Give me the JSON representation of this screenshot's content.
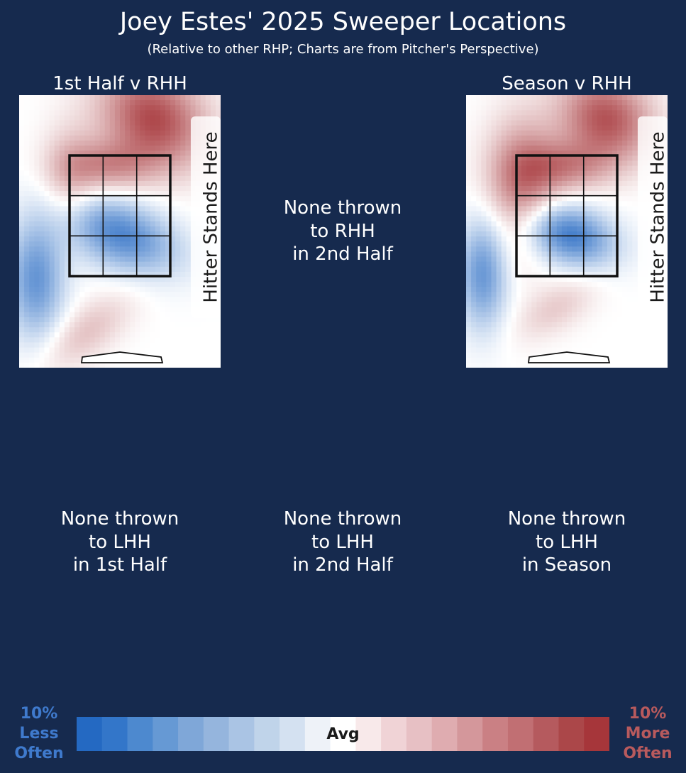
{
  "header": {
    "title": "Joey Estes' 2025 Sweeper Locations",
    "subtitle": "(Relative to other RHP; Charts are from Pitcher's Perspective)"
  },
  "panels": [
    {
      "id": "first-half-rhh",
      "title": "1st Half v RHH",
      "hitter_label": "Hitter Stands Here"
    },
    {
      "id": "season-rhh",
      "title": "Season v RHH",
      "hitter_label": "Hitter Stands Here"
    }
  ],
  "empty_panels": [
    {
      "id": "second-half-rhh",
      "lines": [
        "None thrown",
        "to RHH",
        "in 2nd Half"
      ]
    },
    {
      "id": "first-half-lhh",
      "lines": [
        "None thrown",
        "to LHH",
        "in 1st Half"
      ]
    },
    {
      "id": "second-half-lhh",
      "lines": [
        "None thrown",
        "to LHH",
        "in 2nd Half"
      ]
    },
    {
      "id": "season-lhh",
      "lines": [
        "None thrown",
        "to LHH",
        "in Season"
      ]
    }
  ],
  "colorbar": {
    "left_lines": [
      "10%",
      "Less",
      "Often"
    ],
    "right_lines": [
      "10%",
      "More",
      "Often"
    ],
    "center_label": "Avg",
    "colors": [
      "#2469c2",
      "#3376c9",
      "#4d89cf",
      "#6699d4",
      "#7fa7d8",
      "#95b5dd",
      "#aac4e4",
      "#c0d4ea",
      "#d4e1f1",
      "#eef2f8",
      "#ffffff",
      "#f8e9ea",
      "#f0d3d6",
      "#e7c0c4",
      "#dfacb0",
      "#d4979b",
      "#ca8084",
      "#c16f73",
      "#b55a5e",
      "#ab4749",
      "#a6363a"
    ],
    "less_color": "#3f7acd",
    "more_color": "#b85a5d"
  },
  "chart_data": [
    {
      "type": "heatmap",
      "title": "1st Half v RHH",
      "metric": "location frequency relative to other RHP",
      "scale": [
        -10,
        10
      ],
      "x": [
        -1.8,
        -1.6,
        -1.4,
        -1.2,
        -1.0,
        -0.8,
        -0.6,
        -0.4,
        -0.2,
        0.0,
        0.2,
        0.4,
        0.6,
        0.8,
        1.0,
        1.2,
        1.4,
        1.6,
        1.8
      ],
      "y": [
        4.6,
        4.4,
        4.2,
        4.0,
        3.8,
        3.6,
        3.4,
        3.2,
        3.0,
        2.8,
        2.6,
        2.4,
        2.2,
        2.0,
        1.8,
        1.6,
        1.4,
        1.2,
        1.0,
        0.8,
        0.6,
        0.4,
        0.2,
        0.0
      ],
      "blobs": [
        {
          "x": 0.6,
          "y": 4.2,
          "sx": 0.7,
          "sy": 0.55,
          "value": 9,
          "angle": -30
        },
        {
          "x": -0.9,
          "y": 3.2,
          "sx": 0.35,
          "sy": 0.6,
          "value": 3.5,
          "angle": 0
        },
        {
          "x": -0.2,
          "y": 3.4,
          "sx": 0.55,
          "sy": 0.3,
          "value": 5,
          "angle": 0
        },
        {
          "x": 0.0,
          "y": 2.25,
          "sx": 0.75,
          "sy": 0.4,
          "value": -8,
          "angle": -20
        },
        {
          "x": -1.5,
          "y": 1.5,
          "sx": 0.35,
          "sy": 0.7,
          "value": -7,
          "angle": 0
        },
        {
          "x": -0.6,
          "y": 0.6,
          "sx": 0.65,
          "sy": 0.3,
          "value": 3,
          "angle": 35
        }
      ]
    },
    {
      "type": "heatmap",
      "title": "Season v RHH",
      "metric": "location frequency relative to other RHP",
      "scale": [
        -10,
        10
      ],
      "x": [
        -1.8,
        -1.6,
        -1.4,
        -1.2,
        -1.0,
        -0.8,
        -0.6,
        -0.4,
        -0.2,
        0.0,
        0.2,
        0.4,
        0.6,
        0.8,
        1.0,
        1.2,
        1.4,
        1.6,
        1.8
      ],
      "y": [
        4.6,
        4.4,
        4.2,
        4.0,
        3.8,
        3.6,
        3.4,
        3.2,
        3.0,
        2.8,
        2.6,
        2.4,
        2.2,
        2.0,
        1.8,
        1.6,
        1.4,
        1.2,
        1.0,
        0.8,
        0.6,
        0.4,
        0.2,
        0.0
      ],
      "blobs": [
        {
          "x": 0.7,
          "y": 4.2,
          "sx": 0.6,
          "sy": 0.5,
          "value": 8.5,
          "angle": -25
        },
        {
          "x": -0.8,
          "y": 3.1,
          "sx": 0.45,
          "sy": 0.75,
          "value": 7,
          "angle": 0
        },
        {
          "x": 0.0,
          "y": 3.4,
          "sx": 0.55,
          "sy": 0.3,
          "value": 5,
          "angle": 0
        },
        {
          "x": 0.0,
          "y": 2.25,
          "sx": 0.6,
          "sy": 0.35,
          "value": -9,
          "angle": -15
        },
        {
          "x": -1.5,
          "y": 1.6,
          "sx": 0.3,
          "sy": 0.65,
          "value": -7,
          "angle": 0
        },
        {
          "x": -0.2,
          "y": 1.0,
          "sx": 0.55,
          "sy": 0.28,
          "value": 2.5,
          "angle": 30
        }
      ]
    }
  ]
}
